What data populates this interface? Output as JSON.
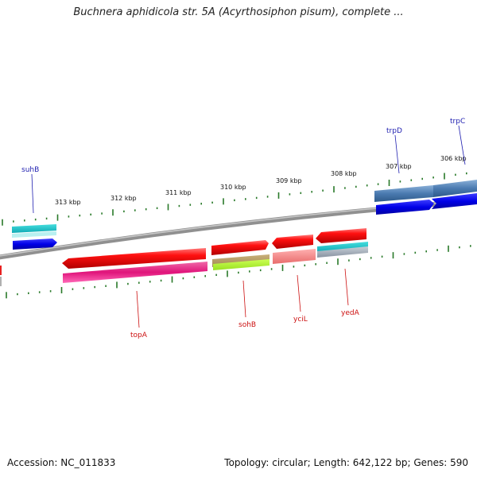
{
  "title": "Buchnera aphidicola str. 5A (Acyrthosiphon pisum), complete ...",
  "footer": {
    "accession": "Accession: NC_011833",
    "stats": "Topology: circular; Length: 642,122 bp; Genes: 590"
  },
  "ruler_labels": [
    "313 kbp",
    "312 kbp",
    "311 kbp",
    "310 kbp",
    "309 kbp",
    "308 kbp",
    "307 kbp",
    "306 kbp"
  ],
  "gene_labels": {
    "top": [
      "suhB",
      "trpD",
      "trpC"
    ],
    "bottom": [
      "topA",
      "sohB",
      "yciL",
      "yedA"
    ]
  },
  "colors": {
    "top_label": "#1f1fb0",
    "bottom_label": "#cc1010",
    "tick": "#2a7a2a",
    "backbone": "#8a8a8a"
  }
}
